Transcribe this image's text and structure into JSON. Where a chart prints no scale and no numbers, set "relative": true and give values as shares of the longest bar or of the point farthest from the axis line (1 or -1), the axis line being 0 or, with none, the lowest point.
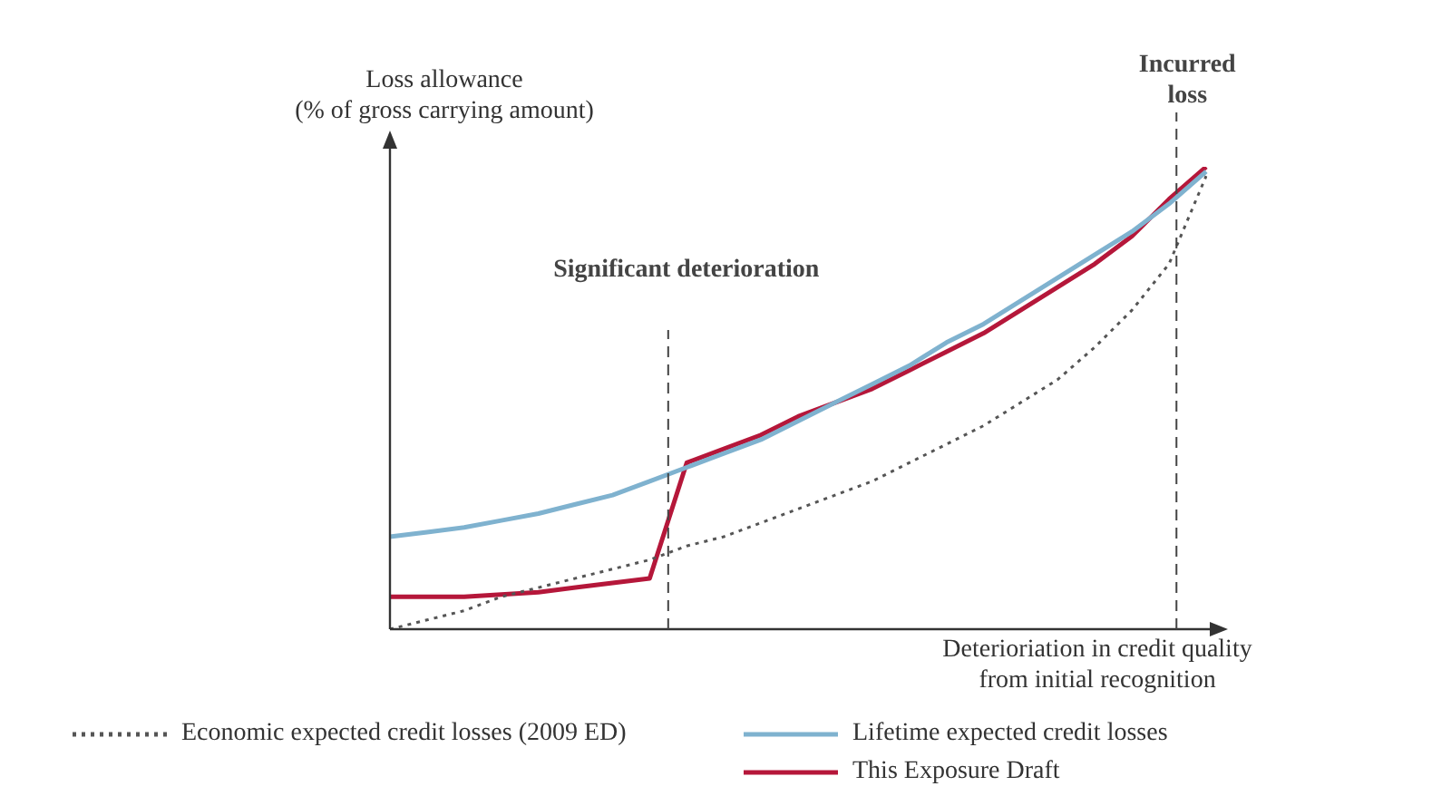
{
  "chart_data": {
    "type": "line",
    "relative": true,
    "legend": "bottom",
    "xlabel": "Deterioriation in credit quality\nfrom initial recognition",
    "ylabel": "Loss allowance\n(% of gross carrying amount)",
    "categories": [
      null,
      null,
      null,
      null,
      null,
      null,
      null,
      null,
      null,
      null,
      null,
      null,
      null,
      null,
      null,
      null,
      null,
      null,
      null,
      null,
      null,
      null,
      null
    ],
    "series": [
      {
        "name": "Economic expected credit losses (2009 ED)",
        "color": "#555555",
        "line_style": "dotted",
        "values": [
          0.0,
          0.02,
          0.04,
          0.07,
          0.09,
          0.11,
          0.13,
          0.15,
          0.18,
          0.2,
          0.23,
          0.26,
          0.29,
          0.32,
          0.36,
          0.4,
          0.44,
          0.49,
          0.54,
          0.61,
          0.69,
          0.79,
          0.98
        ]
      },
      {
        "name": "Lifetime expected credit losses",
        "color": "#7fb2cf",
        "line_style": "solid",
        "values": [
          0.2,
          0.21,
          0.22,
          0.235,
          0.25,
          0.27,
          0.29,
          0.32,
          0.35,
          0.38,
          0.41,
          0.45,
          0.49,
          0.53,
          0.57,
          0.62,
          0.66,
          0.71,
          0.76,
          0.81,
          0.86,
          0.92,
          0.99
        ]
      },
      {
        "name": "This Exposure Draft",
        "color": "#b5173a",
        "line_style": "solid",
        "values": [
          0.07,
          0.07,
          0.07,
          0.075,
          0.08,
          0.09,
          0.1,
          0.11,
          0.36,
          0.39,
          0.42,
          0.46,
          0.49,
          0.52,
          0.56,
          0.6,
          0.64,
          0.69,
          0.74,
          0.79,
          0.85,
          0.93,
          1.0
        ]
      }
    ],
    "annotations": [
      "Significant deterioration",
      "Incurred loss"
    ]
  }
}
